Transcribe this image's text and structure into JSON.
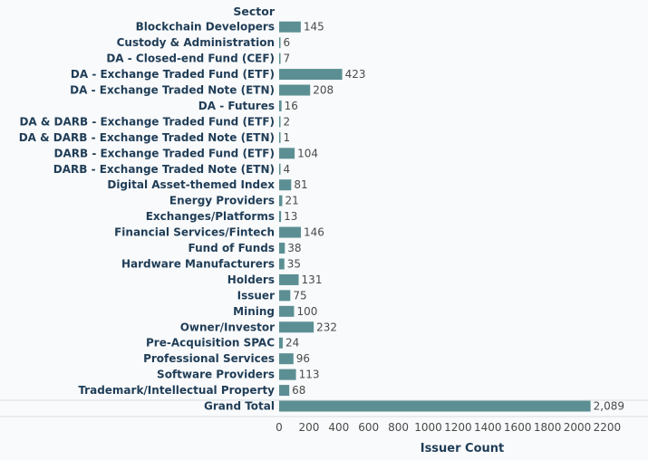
{
  "chart_data": {
    "type": "bar",
    "orientation": "horizontal",
    "row_header": "Sector",
    "xlabel": "Issuer Count",
    "xlim": [
      0,
      2200
    ],
    "xticks": [
      "0",
      "200",
      "400",
      "600",
      "800",
      "1000",
      "1200",
      "1400",
      "1600",
      "1800",
      "2000",
      "2200"
    ],
    "bar_color": "#5b8f93",
    "categories": [
      "Blockchain Developers",
      "Custody & Administration",
      "DA - Closed-end Fund (CEF)",
      "DA - Exchange Traded Fund (ETF)",
      "DA - Exchange Traded Note (ETN)",
      "DA - Futures",
      "DA & DARB - Exchange Traded Fund (ETF)",
      "DA & DARB - Exchange Traded Note (ETN)",
      "DARB - Exchange Traded Fund (ETF)",
      "DARB - Exchange Traded Note (ETN)",
      "Digital Asset-themed Index",
      "Energy Providers",
      "Exchanges/Platforms",
      "Financial Services/Fintech",
      "Fund of Funds",
      "Hardware Manufacturers",
      "Holders",
      "Issuer",
      "Mining",
      "Owner/Investor",
      "Pre-Acquisition SPAC",
      "Professional Services",
      "Software Providers",
      "Trademark/Intellectual Property",
      "Grand Total"
    ],
    "values": [
      145,
      6,
      7,
      423,
      208,
      16,
      2,
      1,
      104,
      4,
      81,
      21,
      13,
      146,
      38,
      35,
      131,
      75,
      100,
      232,
      24,
      96,
      113,
      68,
      2089
    ],
    "value_labels": [
      "145",
      "6",
      "7",
      "423",
      "208",
      "16",
      "2",
      "1",
      "104",
      "4",
      "81",
      "21",
      "13",
      "146",
      "38",
      "35",
      "131",
      "75",
      "100",
      "232",
      "24",
      "96",
      "113",
      "68",
      "2,089"
    ]
  }
}
